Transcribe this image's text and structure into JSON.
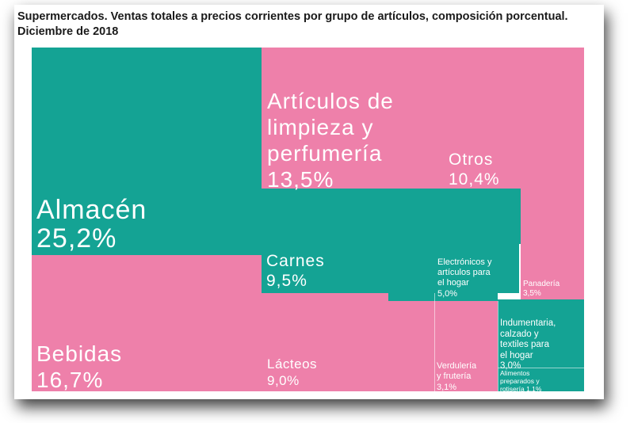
{
  "chart_data": {
    "type": "treemap",
    "title": "Supermercados. Ventas totales a precios corrientes por grupo de artículos, composición porcentual.",
    "subtitle": "Diciembre de 2018",
    "colors": {
      "teal": "#14a394",
      "pink": "#ee80aa"
    },
    "items": [
      {
        "name": "Almacén",
        "value": 25.2,
        "value_label": "25,2%",
        "color": "teal"
      },
      {
        "name": "Bebidas",
        "value": 16.7,
        "value_label": "16,7%",
        "color": "pink"
      },
      {
        "name": "Artículos de\nlimpieza y\nperfumería",
        "value": 13.5,
        "value_label": "13,5%",
        "color": "pink"
      },
      {
        "name": "Otros",
        "value": 10.4,
        "value_label": "10,4%",
        "color": "pink"
      },
      {
        "name": "Carnes",
        "value": 9.5,
        "value_label": "9,5%",
        "color": "teal"
      },
      {
        "name": "Lácteos",
        "value": 9.0,
        "value_label": "9,0%",
        "color": "pink"
      },
      {
        "name": "Electrónicos y\nartículos para\nel hogar",
        "value": 5.0,
        "value_label": "5,0%",
        "color": "teal"
      },
      {
        "name": "Panadería",
        "value": 3.5,
        "value_label": "3,5%",
        "color": "pink"
      },
      {
        "name": "Verdulería\ny frutería",
        "value": 3.1,
        "value_label": "3,1%",
        "color": "pink"
      },
      {
        "name": "Indumentaria,\ncalzado y\ntextiles para\nel hogar",
        "value": 3.0,
        "value_label": "3,0%",
        "color": "teal"
      },
      {
        "name": "Alimentos\npreparados y\nrotisería",
        "value": 1.1,
        "value_label": "1,1%",
        "color": "teal"
      }
    ]
  }
}
